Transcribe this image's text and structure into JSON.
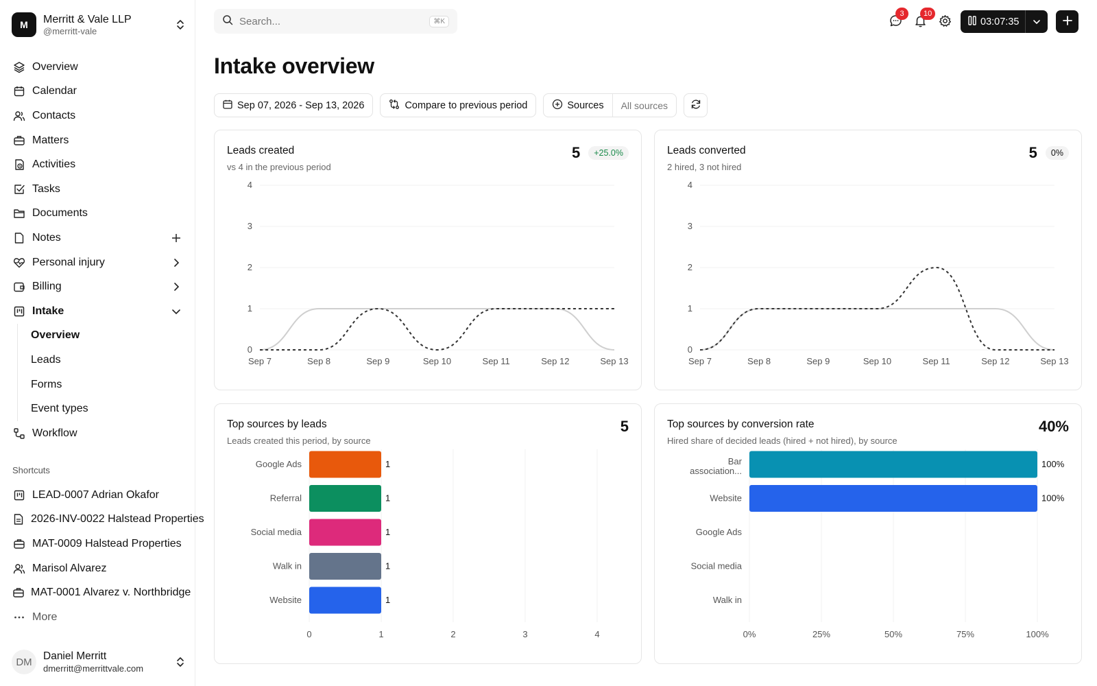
{
  "org": {
    "initial": "M",
    "name": "Merritt & Vale LLP",
    "handle": "@merritt-vale"
  },
  "nav": {
    "overview": "Overview",
    "calendar": "Calendar",
    "contacts": "Contacts",
    "matters": "Matters",
    "activities": "Activities",
    "tasks": "Tasks",
    "documents": "Documents",
    "notes": "Notes",
    "personal_injury": "Personal injury",
    "billing": "Billing",
    "intake": "Intake",
    "intake_sub": [
      "Overview",
      "Leads",
      "Forms",
      "Event types"
    ],
    "workflow": "Workflow"
  },
  "shortcuts": {
    "title": "Shortcuts",
    "items": [
      "LEAD-0007 Adrian Okafor",
      "2026-INV-0022 Halstead Properties",
      "MAT-0009 Halstead Properties",
      "Marisol Alvarez",
      "MAT-0001 Alvarez v. Northbridge",
      "More"
    ]
  },
  "user": {
    "initials": "DM",
    "name": "Daniel Merritt",
    "email": "dmerritt@merrittvale.com"
  },
  "search": {
    "placeholder": "Search...",
    "shortcut": "⌘K"
  },
  "topbar": {
    "messages_badge": "3",
    "notifications_badge": "10",
    "timer": "03:07:35"
  },
  "page": {
    "title": "Intake overview"
  },
  "filters": {
    "date_range": "Sep 07, 2026 - Sep 13, 2026",
    "compare": "Compare to previous period",
    "sources_label": "Sources",
    "sources_value": "All sources"
  },
  "cards": {
    "leads_created": {
      "title": "Leads created",
      "subtitle": "vs 4 in the previous period",
      "value": "5",
      "change": "+25.0%"
    },
    "leads_converted": {
      "title": "Leads converted",
      "subtitle": "2 hired, 3 not hired",
      "value": "5",
      "change": "0%"
    },
    "top_sources_leads": {
      "title": "Top sources by leads",
      "subtitle": "Leads created this period, by source",
      "value": "5"
    },
    "top_sources_conversion": {
      "title": "Top sources by conversion rate",
      "subtitle": "Hired share of decided leads (hired + not hired), by source",
      "value": "40%"
    }
  },
  "colors": {
    "orange": "#e8590c",
    "green": "#0c8f5f",
    "pink": "#dd2a7b",
    "slate": "#64748b",
    "blue": "#2563eb",
    "teal": "#0891b2",
    "badge_red": "#e5282d",
    "positive": "#1a8a4a"
  },
  "chart_data": [
    {
      "type": "line",
      "title": "Leads created",
      "x": [
        "Sep 7",
        "Sep 8",
        "Sep 9",
        "Sep 10",
        "Sep 11",
        "Sep 12",
        "Sep 13"
      ],
      "ylim": [
        0,
        4
      ],
      "yticks": [
        0,
        1,
        2,
        3,
        4
      ],
      "series": [
        {
          "values": [
            0,
            1,
            1,
            1,
            1,
            1,
            0
          ],
          "style": "solid"
        },
        {
          "values": [
            0,
            0,
            1,
            0,
            1,
            1,
            1
          ],
          "style": "dashed"
        }
      ]
    },
    {
      "type": "line",
      "title": "Leads converted",
      "x": [
        "Sep 7",
        "Sep 8",
        "Sep 9",
        "Sep 10",
        "Sep 11",
        "Sep 12",
        "Sep 13"
      ],
      "ylim": [
        0,
        4
      ],
      "yticks": [
        0,
        1,
        2,
        3,
        4
      ],
      "series": [
        {
          "values": [
            0,
            1,
            1,
            1,
            1,
            1,
            0
          ],
          "style": "solid"
        },
        {
          "values": [
            0,
            1,
            1,
            1,
            2,
            0,
            0
          ],
          "style": "dashed"
        }
      ]
    },
    {
      "type": "bar",
      "orientation": "horizontal",
      "title": "Top sources by leads",
      "categories": [
        "Google Ads",
        "Referral",
        "Social media",
        "Walk in",
        "Website"
      ],
      "values": [
        1,
        1,
        1,
        1,
        1
      ],
      "value_labels": [
        "1",
        "1",
        "1",
        "1",
        "1"
      ],
      "colors": [
        "#e8590c",
        "#0c8f5f",
        "#dd2a7b",
        "#64748b",
        "#2563eb"
      ],
      "xlim": [
        0,
        4
      ],
      "xticks": [
        "0",
        "1",
        "2",
        "3",
        "4"
      ]
    },
    {
      "type": "bar",
      "orientation": "horizontal",
      "title": "Top sources by conversion rate",
      "categories": [
        "Bar association...",
        "Website",
        "Google Ads",
        "Social media",
        "Walk in"
      ],
      "values": [
        100,
        100,
        0,
        0,
        0
      ],
      "value_labels": [
        "100%",
        "100%",
        "",
        "",
        ""
      ],
      "colors": [
        "#0891b2",
        "#2563eb",
        "",
        "",
        ""
      ],
      "xlim": [
        0,
        100
      ],
      "xticks": [
        "0%",
        "25%",
        "50%",
        "75%",
        "100%"
      ]
    }
  ]
}
